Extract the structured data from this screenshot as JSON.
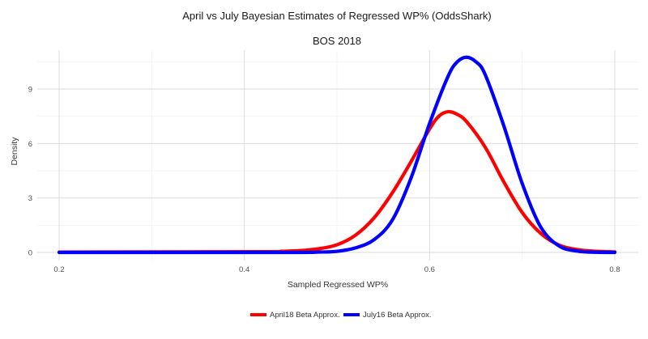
{
  "chart_data": {
    "type": "line",
    "title": "April vs July Bayesian Estimates of Regressed WP% (OddsShark)",
    "subtitle": "BOS  2018",
    "xlabel": "Sampled Regressed WP%",
    "ylabel": "Density",
    "xlim": [
      0.2,
      0.8
    ],
    "ylim": [
      0,
      11.2
    ],
    "x_ticks": [
      0.2,
      0.4,
      0.6,
      0.8
    ],
    "x_tick_labels": [
      "0.2",
      "0.4",
      "0.6",
      "0.8"
    ],
    "y_ticks": [
      0,
      3,
      6,
      9
    ],
    "y_tick_labels": [
      "0",
      "3",
      "6",
      "9"
    ],
    "grid": true,
    "legend_position": "bottom",
    "series": [
      {
        "name": "April18 Beta Approx.",
        "color": "#ff0000",
        "x": [
          0.2,
          0.42,
          0.44,
          0.46,
          0.48,
          0.5,
          0.52,
          0.54,
          0.56,
          0.58,
          0.6,
          0.61,
          0.62,
          0.63,
          0.64,
          0.66,
          0.68,
          0.7,
          0.72,
          0.74,
          0.76,
          0.78,
          0.8
        ],
        "y": [
          0.02,
          0.04,
          0.06,
          0.1,
          0.2,
          0.42,
          0.95,
          1.9,
          3.3,
          5.0,
          6.8,
          7.5,
          7.75,
          7.6,
          7.2,
          5.8,
          3.9,
          2.2,
          1.05,
          0.4,
          0.15,
          0.06,
          0.03
        ]
      },
      {
        "name": "July16 Beta Approx.",
        "color": "#0000ff",
        "x": [
          0.2,
          0.44,
          0.48,
          0.5,
          0.52,
          0.54,
          0.56,
          0.58,
          0.6,
          0.62,
          0.63,
          0.64,
          0.65,
          0.66,
          0.68,
          0.7,
          0.72,
          0.74,
          0.76,
          0.78,
          0.8
        ],
        "y": [
          0.0,
          0.0,
          0.02,
          0.06,
          0.25,
          0.7,
          1.8,
          4.1,
          7.1,
          9.7,
          10.5,
          10.75,
          10.5,
          9.8,
          7.0,
          3.8,
          1.4,
          0.35,
          0.07,
          0.01,
          0.0
        ]
      }
    ]
  }
}
